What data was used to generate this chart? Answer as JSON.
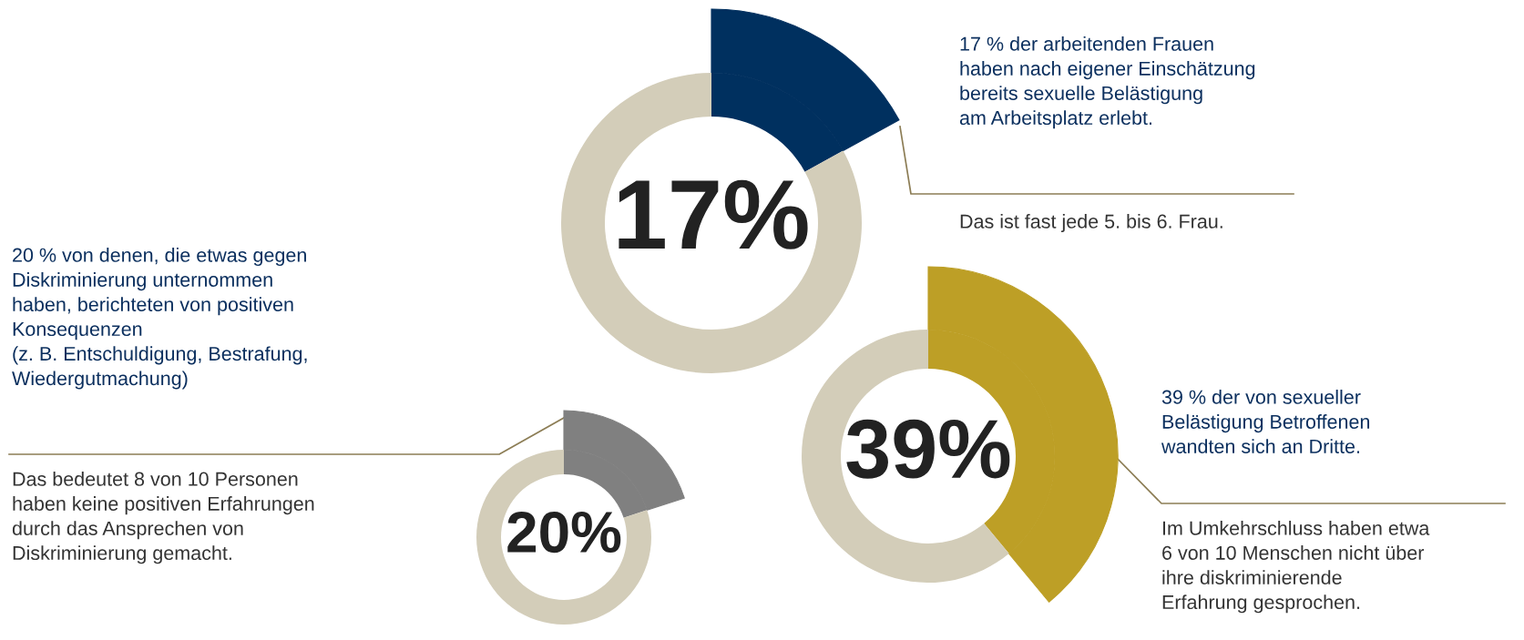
{
  "chart_data": [
    {
      "type": "donut",
      "title": "17%",
      "categories": [
        null,
        null
      ],
      "values": [
        17,
        83
      ],
      "colors": [
        "#00305f",
        "#d3cdb9"
      ],
      "annotations": [
        "17 % der arbeitenden Frauen\nhaben nach eigener Einschätzung\nbereits sexuelle Belästigung\nam Arbeitsplatz erlebt.",
        "Das ist fast jede 5. bis 6. Frau."
      ]
    },
    {
      "type": "donut",
      "title": "39%",
      "categories": [
        null,
        null
      ],
      "values": [
        39,
        61
      ],
      "colors": [
        "#bd9f26",
        "#d3cdb9"
      ],
      "annotations": [
        "39 % der von sexueller\nBelästigung Betroffenen\nwandten sich an Dritte.",
        "Im Umkehrschluss haben etwa\n6 von 10 Menschen nicht über\nihre diskriminierende\nErfahrung gesprochen."
      ]
    },
    {
      "type": "donut",
      "title": "20%",
      "categories": [
        null,
        null
      ],
      "values": [
        20,
        80
      ],
      "colors": [
        "#808080",
        "#d3cdb9"
      ],
      "annotations": [
        "20 % von denen, die etwas gegen\nDiskriminierung unternommen\nhaben, berichteten von positiven\nKonsequenzen\n(z. B. Entschuldigung, Bestrafung,\nWiedergutmachung)",
        "Das bedeutet 8 von 10 Personen\nhaben keine positiven Erfahrungen\ndurch das Ansprechen von\nDiskriminierung gemacht."
      ]
    }
  ]
}
